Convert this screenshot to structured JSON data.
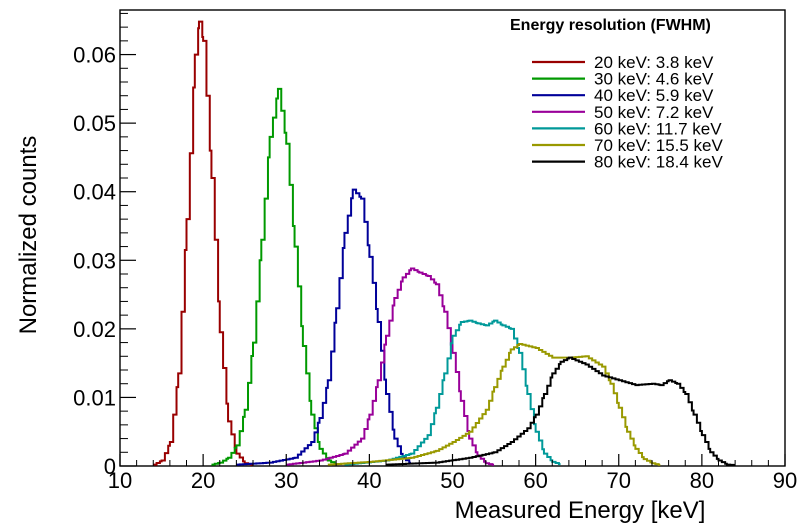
{
  "chart_data": {
    "type": "line",
    "title": "",
    "xlabel": "Measured Energy [keV]",
    "ylabel": "Normalized counts",
    "xlim": [
      10,
      90
    ],
    "ylim": [
      0,
      0.0665
    ],
    "x_ticks": [
      "10",
      "20",
      "30",
      "40",
      "50",
      "60",
      "70",
      "80",
      "90"
    ],
    "y_ticks": [
      "0",
      "0.01",
      "0.02",
      "0.03",
      "0.04",
      "0.05",
      "0.06"
    ],
    "x_tick_values": [
      10,
      20,
      30,
      40,
      50,
      60,
      70,
      80,
      90
    ],
    "y_tick_values": [
      0,
      0.01,
      0.02,
      0.03,
      0.04,
      0.05,
      0.06
    ],
    "grid": false,
    "legend_title": "Energy resolution (FWHM)",
    "legend_position": "top-right",
    "series": [
      {
        "name": "20 keV: 3.8 keV",
        "color": "#990000",
        "points": [
          [
            14,
            0.0002
          ],
          [
            15,
            0.0008
          ],
          [
            16,
            0.0035
          ],
          [
            17,
            0.0135
          ],
          [
            18,
            0.036
          ],
          [
            19,
            0.06
          ],
          [
            19.5,
            0.0648
          ],
          [
            20,
            0.062
          ],
          [
            21,
            0.042
          ],
          [
            22,
            0.0195
          ],
          [
            23,
            0.0065
          ],
          [
            24,
            0.0018
          ],
          [
            25,
            0.0004
          ],
          [
            26,
            0.0001
          ]
        ]
      },
      {
        "name": "30 keV: 4.6 keV",
        "color": "#009900",
        "points": [
          [
            21,
            0.0002
          ],
          [
            22,
            0.0005
          ],
          [
            23,
            0.0012
          ],
          [
            24,
            0.003
          ],
          [
            25,
            0.0082
          ],
          [
            26,
            0.018
          ],
          [
            27,
            0.033
          ],
          [
            28,
            0.048
          ],
          [
            29,
            0.055
          ],
          [
            30,
            0.047
          ],
          [
            31,
            0.032
          ],
          [
            32,
            0.0175
          ],
          [
            33,
            0.0075
          ],
          [
            34,
            0.0025
          ],
          [
            35,
            0.0008
          ],
          [
            36,
            0.0002
          ]
        ]
      },
      {
        "name": "40 keV: 5.9 keV",
        "color": "#000099",
        "points": [
          [
            24,
            0.0002
          ],
          [
            28,
            0.0005
          ],
          [
            31,
            0.0012
          ],
          [
            33,
            0.0035
          ],
          [
            34,
            0.007
          ],
          [
            35,
            0.0125
          ],
          [
            36,
            0.023
          ],
          [
            37,
            0.034
          ],
          [
            38,
            0.0403
          ],
          [
            39,
            0.039
          ],
          [
            40,
            0.0305
          ],
          [
            41,
            0.021
          ],
          [
            42,
            0.0105
          ],
          [
            43,
            0.004
          ],
          [
            44,
            0.0012
          ],
          [
            45,
            0.0003
          ]
        ]
      },
      {
        "name": "50 keV: 7.2 keV",
        "color": "#990099",
        "points": [
          [
            30,
            0.0002
          ],
          [
            34,
            0.0008
          ],
          [
            37,
            0.0018
          ],
          [
            39,
            0.004
          ],
          [
            40,
            0.0075
          ],
          [
            41,
            0.0125
          ],
          [
            42,
            0.019
          ],
          [
            43,
            0.0245
          ],
          [
            44,
            0.0275
          ],
          [
            45,
            0.0288
          ],
          [
            46,
            0.0282
          ],
          [
            47,
            0.0277
          ],
          [
            48,
            0.0265
          ],
          [
            49,
            0.0225
          ],
          [
            50,
            0.0165
          ],
          [
            51,
            0.0095
          ],
          [
            52,
            0.004
          ],
          [
            53,
            0.0015
          ],
          [
            54,
            0.0004
          ],
          [
            55,
            0.0001
          ]
        ]
      },
      {
        "name": "60 keV: 11.7 keV",
        "color": "#009999",
        "points": [
          [
            37,
            0.0002
          ],
          [
            42,
            0.0008
          ],
          [
            45,
            0.0018
          ],
          [
            47,
            0.0045
          ],
          [
            48,
            0.0085
          ],
          [
            49,
            0.0135
          ],
          [
            50,
            0.019
          ],
          [
            51,
            0.021
          ],
          [
            52,
            0.0212
          ],
          [
            53,
            0.0208
          ],
          [
            54,
            0.0205
          ],
          [
            55,
            0.0212
          ],
          [
            56,
            0.0205
          ],
          [
            57,
            0.02
          ],
          [
            58,
            0.0165
          ],
          [
            59,
            0.0105
          ],
          [
            60,
            0.005
          ],
          [
            61,
            0.0018
          ],
          [
            62,
            0.0006
          ],
          [
            63,
            0.0002
          ]
        ]
      },
      {
        "name": "70 keV: 15.5 keV",
        "color": "#999900",
        "points": [
          [
            35,
            0.0002
          ],
          [
            40,
            0.0006
          ],
          [
            45,
            0.0012
          ],
          [
            48,
            0.0022
          ],
          [
            50,
            0.0035
          ],
          [
            52,
            0.005
          ],
          [
            54,
            0.0082
          ],
          [
            55,
            0.0115
          ],
          [
            56,
            0.0145
          ],
          [
            57,
            0.017
          ],
          [
            58,
            0.0178
          ],
          [
            60,
            0.0172
          ],
          [
            62,
            0.0158
          ],
          [
            64,
            0.0158
          ],
          [
            66,
            0.016
          ],
          [
            68,
            0.0145
          ],
          [
            69,
            0.012
          ],
          [
            70,
            0.0085
          ],
          [
            71,
            0.005
          ],
          [
            72,
            0.0025
          ],
          [
            73,
            0.001
          ],
          [
            74,
            0.0004
          ],
          [
            75,
            0.0001
          ]
        ]
      },
      {
        "name": "80 keV: 18.4 keV",
        "color": "#000000",
        "points": [
          [
            42,
            0.0002
          ],
          [
            48,
            0.0005
          ],
          [
            52,
            0.0012
          ],
          [
            55,
            0.002
          ],
          [
            57,
            0.0035
          ],
          [
            59,
            0.0055
          ],
          [
            60,
            0.0075
          ],
          [
            61,
            0.0105
          ],
          [
            62,
            0.0135
          ],
          [
            63,
            0.0152
          ],
          [
            64,
            0.0158
          ],
          [
            66,
            0.0148
          ],
          [
            68,
            0.0132
          ],
          [
            70,
            0.0125
          ],
          [
            72,
            0.0118
          ],
          [
            74,
            0.012
          ],
          [
            75,
            0.0118
          ],
          [
            76,
            0.0125
          ],
          [
            77,
            0.012
          ],
          [
            78,
            0.0105
          ],
          [
            79,
            0.0075
          ],
          [
            80,
            0.0045
          ],
          [
            81,
            0.002
          ],
          [
            82,
            0.0008
          ],
          [
            83,
            0.0002
          ],
          [
            84,
            0.0001
          ]
        ]
      }
    ]
  }
}
